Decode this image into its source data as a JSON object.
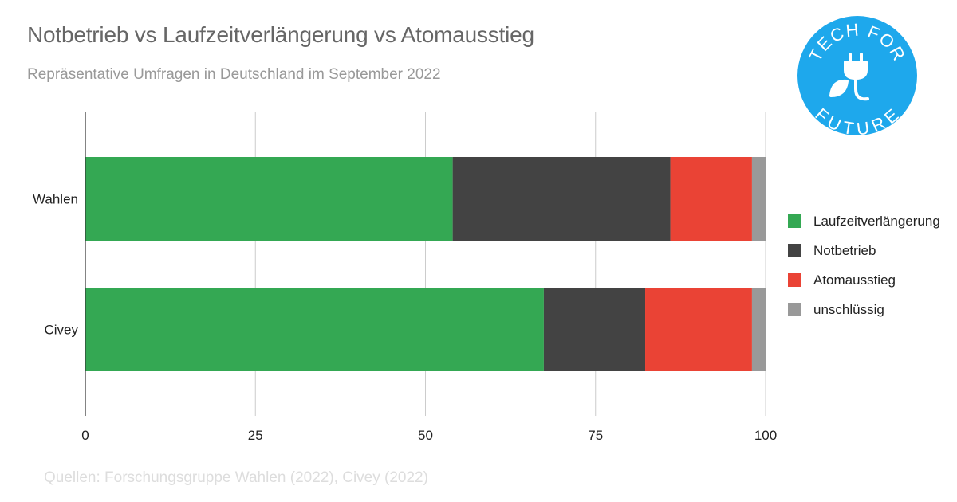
{
  "header": {
    "title": "Notbetrieb vs Laufzeitverlängerung vs Atomausstieg",
    "subtitle": "Repräsentative Umfragen in Deutschland im September 2022"
  },
  "footer": {
    "source": "Quellen: Forschungsgruppe Wahlen (2022), Civey (2022)"
  },
  "logo": {
    "text_top": "TECH FOR",
    "text_bottom": "FUTURE",
    "icon": "plug-leaf-icon",
    "color": "#1ea8ec"
  },
  "chart_data": {
    "type": "bar",
    "orientation": "horizontal",
    "stacked": true,
    "categories": [
      "Wahlen",
      "Civey"
    ],
    "series": [
      {
        "name": "Laufzeitverlängerung",
        "color": "#34a853",
        "values": [
          54,
          67.4
        ]
      },
      {
        "name": "Notbetrieb",
        "color": "#434343",
        "values": [
          32,
          14.9
        ]
      },
      {
        "name": "Atomausstieg",
        "color": "#ea4335",
        "values": [
          12,
          15.7
        ]
      },
      {
        "name": "unschlüssig",
        "color": "#999999",
        "values": [
          2,
          2
        ]
      }
    ],
    "xlim": [
      0,
      100
    ],
    "xticks": [
      "0",
      "25",
      "50",
      "75",
      "100"
    ],
    "grid": true,
    "legend": "right"
  }
}
